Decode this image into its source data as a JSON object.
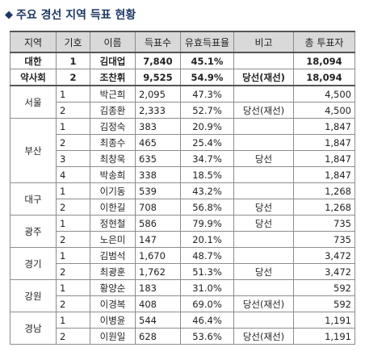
{
  "title": "주요 경선 지역 득표 현황",
  "headers": [
    "지역",
    "기호",
    "이름",
    "득표수",
    "유효득표율",
    "비고",
    "총 투표자"
  ],
  "special": {
    "region_line1": "대한",
    "region_line2": "약사회",
    "rows": [
      {
        "no": "1",
        "name": "김대업",
        "votes": "7,840",
        "rate": "45.1%",
        "note": "",
        "total": "18,094"
      },
      {
        "no": "2",
        "name": "조찬휘",
        "votes": "9,525",
        "rate": "54.9%",
        "note": "당선(재선)",
        "total": "18,094"
      }
    ]
  },
  "regions": [
    {
      "region": "서울",
      "rows": [
        {
          "no": "1",
          "name": "박근희",
          "votes": "2,095",
          "rate": "47.3%",
          "note": "",
          "total": "4,500"
        },
        {
          "no": "2",
          "name": "김종환",
          "votes": "2,333",
          "rate": "52.7%",
          "note": "당선(재선)",
          "total": "4,500"
        }
      ]
    },
    {
      "region": "부산",
      "rows": [
        {
          "no": "1",
          "name": "김정숙",
          "votes": "383",
          "rate": "20.9%",
          "note": "",
          "total": "1,847"
        },
        {
          "no": "2",
          "name": "최종수",
          "votes": "465",
          "rate": "25.4%",
          "note": "",
          "total": "1,847"
        },
        {
          "no": "3",
          "name": "최창욱",
          "votes": "635",
          "rate": "34.7%",
          "note": "당선",
          "total": "1,847"
        },
        {
          "no": "4",
          "name": "박송희",
          "votes": "338",
          "rate": "18.5%",
          "note": "",
          "total": "1,847"
        }
      ]
    },
    {
      "region": "대구",
      "rows": [
        {
          "no": "1",
          "name": "이기동",
          "votes": "539",
          "rate": "43.2%",
          "note": "",
          "total": "1,268"
        },
        {
          "no": "2",
          "name": "이한길",
          "votes": "708",
          "rate": "56.8%",
          "note": "당선",
          "total": "1,268"
        }
      ]
    },
    {
      "region": "광주",
      "rows": [
        {
          "no": "1",
          "name": "정현철",
          "votes": "586",
          "rate": "79.9%",
          "note": "당선",
          "total": "735"
        },
        {
          "no": "2",
          "name": "노은미",
          "votes": "147",
          "rate": "20.1%",
          "note": "",
          "total": "735"
        }
      ]
    },
    {
      "region": "경기",
      "rows": [
        {
          "no": "1",
          "name": "김범석",
          "votes": "1,670",
          "rate": "48.7%",
          "note": "",
          "total": "3,472"
        },
        {
          "no": "2",
          "name": "최광훈",
          "votes": "1,762",
          "rate": "51.3%",
          "note": "당선",
          "total": "3,472"
        }
      ]
    },
    {
      "region": "강원",
      "rows": [
        {
          "no": "1",
          "name": "황양순",
          "votes": "183",
          "rate": "31.0%",
          "note": "",
          "total": "592"
        },
        {
          "no": "2",
          "name": "이경복",
          "votes": "408",
          "rate": "69.0%",
          "note": "당선(재선)",
          "total": "592"
        }
      ]
    },
    {
      "region": "경남",
      "rows": [
        {
          "no": "1",
          "name": "이병윤",
          "votes": "544",
          "rate": "46.4%",
          "note": "",
          "total": "1,191"
        },
        {
          "no": "2",
          "name": "이원일",
          "votes": "628",
          "rate": "53.6%",
          "note": "당선(재선)",
          "total": "1,191"
        }
      ]
    }
  ]
}
